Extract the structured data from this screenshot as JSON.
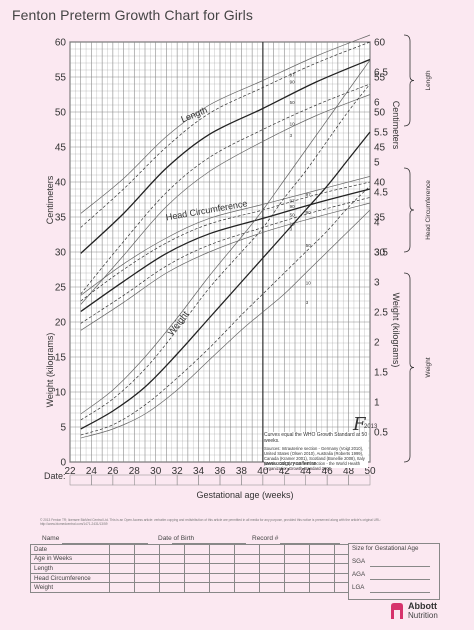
{
  "title": "Fenton Preterm Growth Chart for Girls",
  "chart_data": {
    "type": "line",
    "title": "Fenton Preterm Growth Chart for Girls",
    "xlabel": "Gestational age (weeks)",
    "x_ticks": [
      22,
      24,
      26,
      28,
      30,
      32,
      34,
      36,
      38,
      40,
      42,
      44,
      46,
      48,
      50
    ],
    "xlim": [
      22,
      50
    ],
    "left_axis": {
      "ticks": [
        0,
        5,
        10,
        15,
        20,
        25,
        30,
        35,
        40,
        45,
        50,
        55,
        60
      ],
      "range": [
        0,
        60
      ],
      "upper_label": "Centimeters",
      "lower_label": "Weight (kilograms)"
    },
    "right_axis": {
      "cm_ticks": [
        30,
        35,
        40,
        45,
        50,
        55,
        60
      ],
      "cm_label": "Centimeters",
      "kg_ticks": [
        0.5,
        1,
        1.5,
        2,
        2.5,
        3,
        3.5,
        4,
        4.5,
        5,
        5.5,
        6,
        6.5
      ],
      "kg_label": "Weight (kilograms)"
    },
    "groups": {
      "length": "Length",
      "head": "Head Circumference",
      "weight": "Weight"
    },
    "percentile_labels": [
      "3",
      "10",
      "50",
      "90",
      "97"
    ],
    "series": [
      {
        "group": "length",
        "percentile": "3",
        "x": [
          23,
          27,
          31,
          35,
          40,
          45,
          50
        ],
        "y": [
          22.5,
          29.5,
          36.5,
          41.5,
          45.8,
          49.5,
          52.5
        ]
      },
      {
        "group": "length",
        "percentile": "10",
        "x": [
          23,
          27,
          31,
          35,
          40,
          45,
          50
        ],
        "y": [
          24.0,
          31.5,
          38.5,
          43.5,
          47.5,
          51.0,
          54.0
        ]
      },
      {
        "group": "length",
        "percentile": "50",
        "x": [
          23,
          27,
          31,
          35,
          40,
          45,
          50
        ],
        "y": [
          29.8,
          35.5,
          42.0,
          46.8,
          50.5,
          54.3,
          57.5
        ]
      },
      {
        "group": "length",
        "percentile": "90",
        "x": [
          23,
          27,
          31,
          35,
          40,
          45,
          50
        ],
        "y": [
          33.5,
          39.0,
          45.0,
          49.8,
          53.5,
          57.0,
          60.0
        ]
      },
      {
        "group": "length",
        "percentile": "97",
        "x": [
          23,
          27,
          31,
          35,
          40,
          45,
          50
        ],
        "y": [
          35.5,
          40.5,
          46.5,
          51.0,
          54.5,
          58.0,
          61.0
        ]
      },
      {
        "group": "head",
        "percentile": "3",
        "x": [
          23,
          27,
          31,
          35,
          40,
          45,
          50
        ],
        "y": [
          18.8,
          22.8,
          27.0,
          30.0,
          32.8,
          35.0,
          37.0
        ]
      },
      {
        "group": "head",
        "percentile": "10",
        "x": [
          23,
          27,
          31,
          35,
          40,
          45,
          50
        ],
        "y": [
          19.8,
          23.8,
          28.0,
          31.0,
          33.5,
          35.8,
          37.8
        ]
      },
      {
        "group": "head",
        "percentile": "50",
        "x": [
          23,
          27,
          31,
          35,
          40,
          45,
          50
        ],
        "y": [
          21.5,
          25.8,
          29.8,
          32.6,
          34.8,
          37.0,
          39.0
        ]
      },
      {
        "group": "head",
        "percentile": "90",
        "x": [
          23,
          27,
          31,
          35,
          40,
          45,
          50
        ],
        "y": [
          23.0,
          27.5,
          31.3,
          34.0,
          36.0,
          38.2,
          40.0
        ]
      },
      {
        "group": "head",
        "percentile": "97",
        "x": [
          23,
          27,
          31,
          35,
          40,
          45,
          50
        ],
        "y": [
          23.8,
          28.3,
          32.0,
          34.8,
          36.8,
          38.8,
          40.8
        ]
      },
      {
        "group": "weight",
        "percentile": "3",
        "x": [
          23,
          26,
          29,
          32,
          35,
          38,
          40,
          42,
          44,
          46,
          48,
          50
        ],
        "y": [
          0.4,
          0.55,
          0.8,
          1.2,
          1.7,
          2.2,
          2.5,
          2.8,
          3.15,
          3.5,
          3.85,
          4.2
        ]
      },
      {
        "group": "weight",
        "percentile": "10",
        "x": [
          23,
          26,
          29,
          32,
          35,
          38,
          40,
          42,
          44,
          46,
          48,
          50
        ],
        "y": [
          0.45,
          0.62,
          0.95,
          1.4,
          1.9,
          2.45,
          2.8,
          3.15,
          3.5,
          3.85,
          4.25,
          4.6
        ]
      },
      {
        "group": "weight",
        "percentile": "50",
        "x": [
          23,
          26,
          29,
          32,
          35,
          38,
          40,
          42,
          44,
          46,
          48,
          50
        ],
        "y": [
          0.55,
          0.85,
          1.25,
          1.8,
          2.4,
          3.0,
          3.4,
          3.8,
          4.2,
          4.6,
          5.05,
          5.5
        ]
      },
      {
        "group": "weight",
        "percentile": "90",
        "x": [
          23,
          26,
          29,
          32,
          35,
          38,
          40,
          42,
          44,
          46,
          48,
          50
        ],
        "y": [
          0.7,
          1.05,
          1.55,
          2.2,
          2.9,
          3.5,
          3.9,
          4.4,
          4.85,
          5.35,
          5.85,
          6.3
        ]
      },
      {
        "group": "weight",
        "percentile": "97",
        "x": [
          23,
          26,
          29,
          32,
          35,
          38,
          40,
          42,
          44,
          46,
          48,
          50
        ],
        "y": [
          0.8,
          1.2,
          1.75,
          2.4,
          3.1,
          3.75,
          4.2,
          4.7,
          5.2,
          5.7,
          6.2,
          6.7
        ]
      }
    ],
    "grid": true
  },
  "side_labels": {
    "length": "Length",
    "head": "Head Circumference",
    "weight": "Weight"
  },
  "date_row_label": "Date:",
  "info_box": {
    "equation": "Curves equal the WHO Growth Standard at 50 weeks.",
    "sources": "Sources: Intrauterine section - Germany (Voigt 2010), United States (Olsen 2010), Australia (Roberts 1999), Canada (Kramer 2001), Scotland (Bonellie 2008), Italy (Bertino 2010). Post term section - the World Health Organization Growth Standard 2006.",
    "url": "www.ucalgary.ca/fenton"
  },
  "logo_mark": {
    "letter": "F",
    "year": "2013"
  },
  "copyright": "© 2013 Fenton TR; licensee BioMed Central Ltd. This is an Open Access article: verbatim copying and redistribution of this article are permitted in all media for any purpose, provided this notice is preserved along with the article's original URL: http://www.biomedcentral.com/1471-2431/13/59",
  "record": {
    "name_label": "Name",
    "dob_label": "Date of Birth",
    "record_label": "Record #",
    "rows": [
      "Date",
      "Age in Weeks",
      "Length",
      "Head Circumference",
      "Weight"
    ]
  },
  "sga": {
    "title": "Size for Gestational Age",
    "rows": [
      "SGA",
      "AGA",
      "LGA"
    ]
  },
  "brand": {
    "name": "Abbott",
    "sub": "Nutrition"
  },
  "colors": {
    "background": "#fbe8f1",
    "grid": "#8a8a8a",
    "curve": "#333333",
    "brace": "#9a2a5a"
  }
}
